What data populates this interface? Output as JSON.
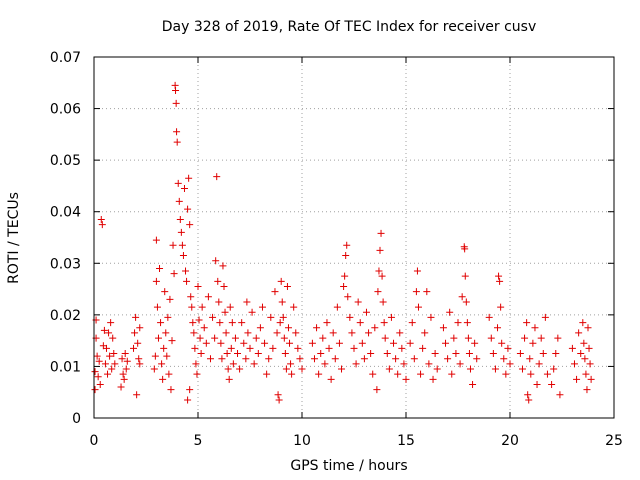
{
  "chart_data": {
    "type": "scatter",
    "title": "Day 328 of 2019, Rate Of TEC Index for receiver cusv",
    "xlabel": "GPS time / hours",
    "ylabel": "ROTI / TECUs",
    "xlim": [
      0,
      25
    ],
    "ylim": [
      0,
      0.07
    ],
    "xticks": [
      0,
      5,
      10,
      15,
      20,
      25
    ],
    "yticks": [
      0,
      0.01,
      0.02,
      0.03,
      0.04,
      0.05,
      0.06,
      0.07
    ],
    "xtick_labels": [
      "0",
      "5",
      "10",
      "15",
      "20",
      "25"
    ],
    "ytick_labels": [
      "0",
      "0.01",
      "0.02",
      "0.03",
      "0.04",
      "0.05",
      "0.06",
      "0.07"
    ],
    "grid": true,
    "marker": "plus",
    "color": "#e00000",
    "points": [
      [
        0.05,
        0.009
      ],
      [
        0.05,
        0.0055
      ],
      [
        0.1,
        0.019
      ],
      [
        0.1,
        0.0155
      ],
      [
        0.15,
        0.012
      ],
      [
        0.2,
        0.008
      ],
      [
        0.25,
        0.011
      ],
      [
        0.3,
        0.0065
      ],
      [
        0.35,
        0.0385
      ],
      [
        0.4,
        0.0375
      ],
      [
        0.45,
        0.014
      ],
      [
        0.5,
        0.017
      ],
      [
        0.55,
        0.0105
      ],
      [
        0.6,
        0.0135
      ],
      [
        0.65,
        0.0085
      ],
      [
        0.7,
        0.0165
      ],
      [
        0.75,
        0.012
      ],
      [
        0.8,
        0.0185
      ],
      [
        0.85,
        0.0095
      ],
      [
        0.9,
        0.0155
      ],
      [
        0.95,
        0.0125
      ],
      [
        1.0,
        0.0105
      ],
      [
        1.3,
        0.006
      ],
      [
        1.35,
        0.0115
      ],
      [
        1.4,
        0.0085
      ],
      [
        1.45,
        0.0075
      ],
      [
        1.5,
        0.0125
      ],
      [
        1.55,
        0.0095
      ],
      [
        1.6,
        0.011
      ],
      [
        1.9,
        0.0135
      ],
      [
        1.95,
        0.0165
      ],
      [
        2.0,
        0.0195
      ],
      [
        2.05,
        0.0045
      ],
      [
        2.1,
        0.0145
      ],
      [
        2.15,
        0.0115
      ],
      [
        2.2,
        0.0105
      ],
      [
        2.2,
        0.0175
      ],
      [
        2.9,
        0.0095
      ],
      [
        2.95,
        0.012
      ],
      [
        3.0,
        0.0345
      ],
      [
        3.0,
        0.0265
      ],
      [
        3.05,
        0.0215
      ],
      [
        3.1,
        0.0155
      ],
      [
        3.15,
        0.029
      ],
      [
        3.2,
        0.0185
      ],
      [
        3.25,
        0.0105
      ],
      [
        3.3,
        0.0075
      ],
      [
        3.35,
        0.0135
      ],
      [
        3.4,
        0.0245
      ],
      [
        3.45,
        0.0165
      ],
      [
        3.5,
        0.012
      ],
      [
        3.55,
        0.0195
      ],
      [
        3.6,
        0.0085
      ],
      [
        3.65,
        0.023
      ],
      [
        3.7,
        0.0055
      ],
      [
        3.75,
        0.015
      ],
      [
        3.8,
        0.0335
      ],
      [
        3.85,
        0.028
      ],
      [
        3.9,
        0.0645
      ],
      [
        3.92,
        0.0635
      ],
      [
        3.95,
        0.061
      ],
      [
        3.97,
        0.0555
      ],
      [
        4.0,
        0.0535
      ],
      [
        4.05,
        0.0455
      ],
      [
        4.1,
        0.042
      ],
      [
        4.15,
        0.0385
      ],
      [
        4.2,
        0.036
      ],
      [
        4.25,
        0.0335
      ],
      [
        4.3,
        0.0315
      ],
      [
        4.35,
        0.0445
      ],
      [
        4.4,
        0.0285
      ],
      [
        4.45,
        0.0265
      ],
      [
        4.5,
        0.0405
      ],
      [
        4.55,
        0.0465
      ],
      [
        4.6,
        0.0375
      ],
      [
        4.65,
        0.0235
      ],
      [
        4.7,
        0.0215
      ],
      [
        4.75,
        0.0185
      ],
      [
        4.8,
        0.0165
      ],
      [
        4.85,
        0.0135
      ],
      [
        4.9,
        0.0105
      ],
      [
        4.95,
        0.0085
      ],
      [
        4.5,
        0.0035
      ],
      [
        4.6,
        0.0055
      ],
      [
        5.0,
        0.0255
      ],
      [
        5.05,
        0.019
      ],
      [
        5.1,
        0.0155
      ],
      [
        5.15,
        0.0125
      ],
      [
        5.2,
        0.0215
      ],
      [
        5.3,
        0.0175
      ],
      [
        5.4,
        0.0145
      ],
      [
        5.5,
        0.0235
      ],
      [
        5.6,
        0.0115
      ],
      [
        5.7,
        0.0195
      ],
      [
        5.8,
        0.0155
      ],
      [
        5.85,
        0.0305
      ],
      [
        5.9,
        0.0468
      ],
      [
        5.95,
        0.0265
      ],
      [
        6.0,
        0.0225
      ],
      [
        6.05,
        0.0185
      ],
      [
        6.1,
        0.0145
      ],
      [
        6.15,
        0.0115
      ],
      [
        6.2,
        0.0295
      ],
      [
        6.25,
        0.0255
      ],
      [
        6.3,
        0.0205
      ],
      [
        6.35,
        0.0165
      ],
      [
        6.4,
        0.0125
      ],
      [
        6.45,
        0.0095
      ],
      [
        6.5,
        0.0075
      ],
      [
        6.55,
        0.0215
      ],
      [
        6.6,
        0.0135
      ],
      [
        6.65,
        0.0185
      ],
      [
        6.7,
        0.0105
      ],
      [
        6.8,
        0.0155
      ],
      [
        6.9,
        0.0125
      ],
      [
        7.0,
        0.0095
      ],
      [
        7.1,
        0.0185
      ],
      [
        7.2,
        0.0145
      ],
      [
        7.3,
        0.0115
      ],
      [
        7.35,
        0.0225
      ],
      [
        7.4,
        0.0165
      ],
      [
        7.5,
        0.0135
      ],
      [
        7.6,
        0.0205
      ],
      [
        7.7,
        0.0105
      ],
      [
        7.8,
        0.0155
      ],
      [
        7.9,
        0.0125
      ],
      [
        8.0,
        0.0175
      ],
      [
        8.1,
        0.0215
      ],
      [
        8.2,
        0.0145
      ],
      [
        8.3,
        0.0085
      ],
      [
        8.4,
        0.0115
      ],
      [
        8.5,
        0.0195
      ],
      [
        8.6,
        0.0135
      ],
      [
        8.7,
        0.0245
      ],
      [
        8.8,
        0.0165
      ],
      [
        8.85,
        0.0045
      ],
      [
        8.9,
        0.0035
      ],
      [
        8.95,
        0.0185
      ],
      [
        9.0,
        0.0265
      ],
      [
        9.05,
        0.0225
      ],
      [
        9.1,
        0.0195
      ],
      [
        9.15,
        0.0155
      ],
      [
        9.2,
        0.0125
      ],
      [
        9.25,
        0.0095
      ],
      [
        9.3,
        0.0255
      ],
      [
        9.35,
        0.0175
      ],
      [
        9.4,
        0.0145
      ],
      [
        9.45,
        0.0105
      ],
      [
        9.5,
        0.0085
      ],
      [
        9.6,
        0.0215
      ],
      [
        9.7,
        0.0165
      ],
      [
        9.8,
        0.0135
      ],
      [
        9.9,
        0.0115
      ],
      [
        10.0,
        0.0095
      ],
      [
        10.5,
        0.0145
      ],
      [
        10.6,
        0.0115
      ],
      [
        10.7,
        0.0175
      ],
      [
        10.8,
        0.0085
      ],
      [
        10.9,
        0.0125
      ],
      [
        11.0,
        0.0155
      ],
      [
        11.1,
        0.0105
      ],
      [
        11.2,
        0.0185
      ],
      [
        11.3,
        0.0135
      ],
      [
        11.4,
        0.0075
      ],
      [
        11.5,
        0.0165
      ],
      [
        11.6,
        0.0115
      ],
      [
        11.7,
        0.0215
      ],
      [
        11.8,
        0.0145
      ],
      [
        11.9,
        0.0095
      ],
      [
        12.0,
        0.0255
      ],
      [
        12.05,
        0.0275
      ],
      [
        12.1,
        0.0315
      ],
      [
        12.15,
        0.0335
      ],
      [
        12.2,
        0.0235
      ],
      [
        12.3,
        0.0195
      ],
      [
        12.4,
        0.0165
      ],
      [
        12.5,
        0.0135
      ],
      [
        12.6,
        0.0105
      ],
      [
        12.7,
        0.0225
      ],
      [
        12.8,
        0.0185
      ],
      [
        12.9,
        0.0145
      ],
      [
        13.0,
        0.0115
      ],
      [
        13.1,
        0.0205
      ],
      [
        13.2,
        0.0165
      ],
      [
        13.3,
        0.0125
      ],
      [
        13.4,
        0.0085
      ],
      [
        13.5,
        0.0175
      ],
      [
        13.6,
        0.0055
      ],
      [
        13.65,
        0.0245
      ],
      [
        13.7,
        0.0285
      ],
      [
        13.75,
        0.0325
      ],
      [
        13.8,
        0.0358
      ],
      [
        13.85,
        0.0275
      ],
      [
        13.9,
        0.0225
      ],
      [
        13.95,
        0.0185
      ],
      [
        14.0,
        0.0155
      ],
      [
        14.1,
        0.0125
      ],
      [
        14.2,
        0.0095
      ],
      [
        14.3,
        0.0195
      ],
      [
        14.4,
        0.0145
      ],
      [
        14.5,
        0.0115
      ],
      [
        14.6,
        0.0085
      ],
      [
        14.7,
        0.0165
      ],
      [
        14.8,
        0.0135
      ],
      [
        14.9,
        0.0105
      ],
      [
        15.0,
        0.0075
      ],
      [
        15.2,
        0.0145
      ],
      [
        15.3,
        0.0185
      ],
      [
        15.4,
        0.0115
      ],
      [
        15.5,
        0.0245
      ],
      [
        15.55,
        0.0285
      ],
      [
        15.6,
        0.0215
      ],
      [
        15.7,
        0.0085
      ],
      [
        15.8,
        0.0135
      ],
      [
        15.9,
        0.0165
      ],
      [
        16.0,
        0.0245
      ],
      [
        16.1,
        0.0105
      ],
      [
        16.2,
        0.0195
      ],
      [
        16.3,
        0.0075
      ],
      [
        16.4,
        0.0125
      ],
      [
        16.5,
        0.0095
      ],
      [
        16.8,
        0.0175
      ],
      [
        16.9,
        0.0145
      ],
      [
        17.0,
        0.0115
      ],
      [
        17.1,
        0.0205
      ],
      [
        17.2,
        0.0085
      ],
      [
        17.3,
        0.0155
      ],
      [
        17.4,
        0.0125
      ],
      [
        17.5,
        0.0185
      ],
      [
        17.6,
        0.0105
      ],
      [
        17.7,
        0.0235
      ],
      [
        17.8,
        0.0332
      ],
      [
        17.82,
        0.0328
      ],
      [
        17.85,
        0.0275
      ],
      [
        17.9,
        0.0225
      ],
      [
        17.95,
        0.0185
      ],
      [
        18.0,
        0.0155
      ],
      [
        18.05,
        0.0125
      ],
      [
        18.1,
        0.0095
      ],
      [
        18.2,
        0.0065
      ],
      [
        18.3,
        0.0145
      ],
      [
        18.4,
        0.0115
      ],
      [
        19.0,
        0.0195
      ],
      [
        19.1,
        0.0155
      ],
      [
        19.2,
        0.0125
      ],
      [
        19.3,
        0.0095
      ],
      [
        19.4,
        0.0175
      ],
      [
        19.45,
        0.0275
      ],
      [
        19.5,
        0.0265
      ],
      [
        19.55,
        0.0215
      ],
      [
        19.6,
        0.0145
      ],
      [
        19.7,
        0.0115
      ],
      [
        19.8,
        0.0085
      ],
      [
        19.9,
        0.0135
      ],
      [
        20.0,
        0.0105
      ],
      [
        20.5,
        0.0125
      ],
      [
        20.6,
        0.0095
      ],
      [
        20.7,
        0.0155
      ],
      [
        20.8,
        0.0185
      ],
      [
        20.85,
        0.0045
      ],
      [
        20.9,
        0.0035
      ],
      [
        20.95,
        0.0115
      ],
      [
        21.0,
        0.0085
      ],
      [
        21.1,
        0.0145
      ],
      [
        21.2,
        0.0175
      ],
      [
        21.3,
        0.0065
      ],
      [
        21.4,
        0.0105
      ],
      [
        21.5,
        0.0155
      ],
      [
        21.6,
        0.0125
      ],
      [
        21.7,
        0.0195
      ],
      [
        21.8,
        0.0085
      ],
      [
        22.0,
        0.0065
      ],
      [
        22.1,
        0.0095
      ],
      [
        22.2,
        0.0125
      ],
      [
        22.3,
        0.0155
      ],
      [
        22.4,
        0.0045
      ],
      [
        23.0,
        0.0135
      ],
      [
        23.1,
        0.0105
      ],
      [
        23.2,
        0.0075
      ],
      [
        23.3,
        0.0165
      ],
      [
        23.4,
        0.0125
      ],
      [
        23.5,
        0.0185
      ],
      [
        23.55,
        0.0145
      ],
      [
        23.6,
        0.0115
      ],
      [
        23.65,
        0.0085
      ],
      [
        23.7,
        0.0055
      ],
      [
        23.75,
        0.0175
      ],
      [
        23.8,
        0.0135
      ],
      [
        23.85,
        0.0105
      ],
      [
        23.9,
        0.0075
      ]
    ]
  }
}
